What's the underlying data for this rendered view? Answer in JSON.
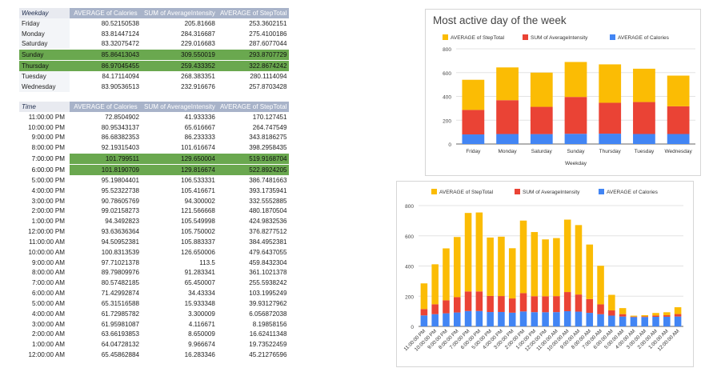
{
  "weekday_table": {
    "headers": [
      "Weekday",
      "AVERAGE of Calories",
      "SUM of AverageIntensity",
      "AVERAGE of StepTotal"
    ],
    "rows": [
      {
        "label": "Friday",
        "values": [
          "80.52150538",
          "205.81668",
          "253.3602151"
        ],
        "highlight": false
      },
      {
        "label": "Monday",
        "values": [
          "83.81447124",
          "284.316687",
          "275.4100186"
        ],
        "highlight": false
      },
      {
        "label": "Saturday",
        "values": [
          "83.32075472",
          "229.016683",
          "287.6077044"
        ],
        "highlight": false
      },
      {
        "label": "Sunday",
        "values": [
          "85.86413043",
          "309.550019",
          "293.8707729"
        ],
        "highlight": true
      },
      {
        "label": "Thursday",
        "values": [
          "86.97045455",
          "259.433352",
          "322.8674242"
        ],
        "highlight": true
      },
      {
        "label": "Tuesday",
        "values": [
          "84.17114094",
          "268.383351",
          "280.1114094"
        ],
        "highlight": false
      },
      {
        "label": "Wednesday",
        "values": [
          "83.90536513",
          "232.916676",
          "257.8703428"
        ],
        "highlight": false
      }
    ]
  },
  "time_table": {
    "headers": [
      "Time",
      "AVERAGE of Calories",
      "SUM of AverageIntensity",
      "AVERAGE of StepTotal"
    ],
    "rows": [
      {
        "label": "11:00:00 PM",
        "values": [
          "72.8504902",
          "41.933336",
          "170.127451"
        ],
        "highlight": false
      },
      {
        "label": "10:00:00 PM",
        "values": [
          "80.95343137",
          "65.616667",
          "264.747549"
        ],
        "highlight": false
      },
      {
        "label": "9:00:00 PM",
        "values": [
          "86.68382353",
          "86.233333",
          "343.8186275"
        ],
        "highlight": false
      },
      {
        "label": "8:00:00 PM",
        "values": [
          "92.19315403",
          "101.616674",
          "398.2958435"
        ],
        "highlight": false
      },
      {
        "label": "7:00:00 PM",
        "values": [
          "101.799511",
          "129.650004",
          "519.9168704"
        ],
        "highlight": true
      },
      {
        "label": "6:00:00 PM",
        "values": [
          "101.8190709",
          "129.816674",
          "522.8924205"
        ],
        "highlight": true
      },
      {
        "label": "5:00:00 PM",
        "values": [
          "95.19804401",
          "106.533331",
          "386.7481663"
        ],
        "highlight": false
      },
      {
        "label": "4:00:00 PM",
        "values": [
          "95.52322738",
          "105.416671",
          "393.1735941"
        ],
        "highlight": false
      },
      {
        "label": "3:00:00 PM",
        "values": [
          "90.78605769",
          "94.300002",
          "332.5552885"
        ],
        "highlight": false
      },
      {
        "label": "2:00:00 PM",
        "values": [
          "99.02158273",
          "121.566668",
          "480.1870504"
        ],
        "highlight": false
      },
      {
        "label": "1:00:00 PM",
        "values": [
          "94.3492823",
          "105.549998",
          "424.9832536"
        ],
        "highlight": false
      },
      {
        "label": "12:00:00 PM",
        "values": [
          "93.63636364",
          "105.750002",
          "376.8277512"
        ],
        "highlight": false
      },
      {
        "label": "11:00:00 AM",
        "values": [
          "94.50952381",
          "105.883337",
          "384.4952381"
        ],
        "highlight": false
      },
      {
        "label": "10:00:00 AM",
        "values": [
          "100.8313539",
          "126.650006",
          "479.6437055"
        ],
        "highlight": false
      },
      {
        "label": "9:00:00 AM",
        "values": [
          "97.71021378",
          "113.5",
          "459.8432304"
        ],
        "highlight": false
      },
      {
        "label": "8:00:00 AM",
        "values": [
          "89.79809976",
          "91.283341",
          "361.1021378"
        ],
        "highlight": false
      },
      {
        "label": "7:00:00 AM",
        "values": [
          "80.57482185",
          "65.450007",
          "255.5938242"
        ],
        "highlight": false
      },
      {
        "label": "6:00:00 AM",
        "values": [
          "71.42992874",
          "34.43334",
          "103.1995249"
        ],
        "highlight": false
      },
      {
        "label": "5:00:00 AM",
        "values": [
          "65.31516588",
          "15.933348",
          "39.93127962"
        ],
        "highlight": false
      },
      {
        "label": "4:00:00 AM",
        "values": [
          "61.72985782",
          "3.300009",
          "6.056872038"
        ],
        "highlight": false
      },
      {
        "label": "3:00:00 AM",
        "values": [
          "61.95981087",
          "4.116671",
          "8.19858156"
        ],
        "highlight": false
      },
      {
        "label": "2:00:00 AM",
        "values": [
          "63.66193853",
          "8.650009",
          "16.62411348"
        ],
        "highlight": false
      },
      {
        "label": "1:00:00 AM",
        "values": [
          "64.04728132",
          "9.966674",
          "19.73522459"
        ],
        "highlight": false
      },
      {
        "label": "12:00:00 AM",
        "values": [
          "65.45862884",
          "16.283346",
          "45.21276596"
        ],
        "highlight": false
      }
    ]
  },
  "colors": {
    "steps": "#fbbc04",
    "intensity": "#ea4335",
    "calories": "#4285f4",
    "highlight": "#6aa84f"
  },
  "chart_data": [
    {
      "type": "bar",
      "stacked": true,
      "title": "Most active day of the week",
      "xlabel": "Weekday",
      "ylabel": "",
      "categories": [
        "Friday",
        "Monday",
        "Saturday",
        "Sunday",
        "Thursday",
        "Tuesday",
        "Wednesday"
      ],
      "ylim": [
        0,
        800
      ],
      "yticks": [
        0,
        200,
        400,
        600,
        800
      ],
      "legend_position": "top",
      "grid": true,
      "series": [
        {
          "name": "AVERAGE of StepTotal",
          "color": "#fbbc04",
          "values": [
            253.36,
            275.41,
            287.61,
            293.87,
            322.87,
            280.11,
            257.87
          ]
        },
        {
          "name": "SUM of AverageIntensity",
          "color": "#ea4335",
          "values": [
            205.82,
            284.32,
            229.02,
            309.55,
            259.43,
            268.38,
            232.92
          ]
        },
        {
          "name": "AVERAGE of Calories",
          "color": "#4285f4",
          "values": [
            80.52,
            83.81,
            83.32,
            85.86,
            86.97,
            84.17,
            83.91
          ]
        }
      ]
    },
    {
      "type": "bar",
      "stacked": true,
      "title": "",
      "xlabel": "",
      "ylabel": "",
      "categories": [
        "11:00:00 PM",
        "10:00:00 PM",
        "9:00:00 PM",
        "8:00:00 PM",
        "7:00:00 PM",
        "6:00:00 PM",
        "5:00:00 PM",
        "4:00:00 PM",
        "3:00:00 PM",
        "2:00:00 PM",
        "1:00:00 PM",
        "12:00:00 PM",
        "11:00:00 AM",
        "10:00:00 AM",
        "9:00:00 AM",
        "8:00:00 AM",
        "7:00:00 AM",
        "6:00:00 AM",
        "5:00:00 AM",
        "4:00:00 AM",
        "3:00:00 AM",
        "2:00:00 AM",
        "1:00:00 AM",
        "12:00:00 AM"
      ],
      "ylim": [
        0,
        800
      ],
      "yticks": [
        0,
        200,
        400,
        600,
        800
      ],
      "legend_position": "top",
      "grid": true,
      "series": [
        {
          "name": "AVERAGE of StepTotal",
          "color": "#fbbc04",
          "values": [
            170.13,
            264.75,
            343.82,
            398.3,
            519.92,
            522.89,
            386.75,
            393.17,
            332.56,
            480.19,
            424.98,
            376.83,
            384.5,
            479.64,
            459.84,
            361.1,
            255.59,
            103.2,
            39.93,
            6.06,
            8.2,
            16.62,
            19.74,
            45.21
          ]
        },
        {
          "name": "SUM of AverageIntensity",
          "color": "#ea4335",
          "values": [
            41.93,
            65.62,
            86.23,
            101.62,
            129.65,
            129.82,
            106.53,
            105.42,
            94.3,
            121.57,
            105.55,
            105.75,
            105.88,
            126.65,
            113.5,
            91.28,
            65.45,
            34.43,
            15.93,
            3.3,
            4.12,
            8.65,
            9.97,
            16.28
          ]
        },
        {
          "name": "AVERAGE of Calories",
          "color": "#4285f4",
          "values": [
            72.85,
            80.95,
            86.68,
            92.19,
            101.8,
            101.82,
            95.2,
            95.52,
            90.79,
            99.02,
            94.35,
            93.64,
            94.51,
            100.83,
            97.71,
            89.8,
            80.57,
            71.43,
            65.32,
            61.73,
            61.96,
            63.66,
            64.05,
            65.46
          ]
        }
      ]
    }
  ]
}
